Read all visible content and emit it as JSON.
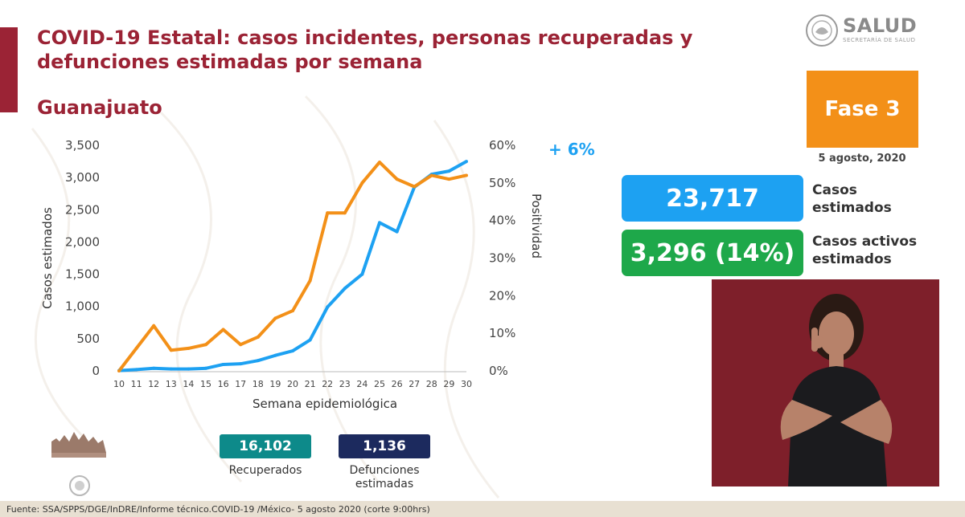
{
  "header": {
    "title": "COVID-19 Estatal: casos incidentes, personas recuperadas y defunciones estimadas por semana",
    "subtitle": "Guanajuato",
    "logo_text": "SALUD",
    "logo_subtext": "SECRETARÍA DE SALUD"
  },
  "phase": {
    "label": "Fase 3"
  },
  "date": "5 agosto, 2020",
  "stats": {
    "estimated": {
      "value": "23,717",
      "label_line1": "Casos",
      "label_line2": "estimados"
    },
    "active": {
      "value": "3,296 (14%)",
      "label_line1": "Casos activos",
      "label_line2": "estimados"
    }
  },
  "delta_label": "+ 6%",
  "totals": {
    "recovered": {
      "value": "16,102",
      "label": "Recuperados"
    },
    "deaths": {
      "value": "1,136",
      "label_line1": "Defunciones",
      "label_line2": "estimadas"
    }
  },
  "footer": "Fuente: SSA/SPPS/DGE/InDRE/Informe técnico.COVID-19 /México- 5 agosto 2020 (corte 9:00hrs)",
  "colors": {
    "brand": "#9b2335",
    "cases_line": "#1da1f2",
    "positivity_line": "#f39018",
    "phase": "#f39018",
    "recovered": "#0d8a8a",
    "deaths": "#1c2a5e"
  },
  "icons": [
    "mexico-seal-icon",
    "sign-language-interpreter-video"
  ],
  "chart_data": {
    "type": "line",
    "x": [
      10,
      11,
      12,
      13,
      14,
      15,
      16,
      17,
      18,
      19,
      20,
      21,
      22,
      23,
      24,
      25,
      26,
      27,
      28,
      29,
      30
    ],
    "xlabel": "Semana epidemiológica",
    "ylabel": "Casos estimados",
    "ylabel_right": "Positividad",
    "ylim": [
      0,
      3500
    ],
    "yticks": [
      "0",
      "500",
      "1,000",
      "1,500",
      "2,000",
      "2,500",
      "3,000",
      "3,500"
    ],
    "ylim_right": [
      0,
      60
    ],
    "yticks_right": [
      "0%",
      "10%",
      "20%",
      "30%",
      "40%",
      "50%",
      "60%"
    ],
    "series": [
      {
        "axis": "left",
        "values": [
          5,
          20,
          40,
          30,
          30,
          40,
          100,
          110,
          160,
          240,
          310,
          480,
          990,
          1280,
          1500,
          2300,
          2160,
          2850,
          3050,
          3100,
          3250
        ]
      },
      {
        "axis": "right",
        "values": [
          0,
          6,
          12,
          5.5,
          6,
          7,
          11,
          7,
          9,
          14,
          16,
          24,
          42,
          42,
          50,
          55.5,
          51,
          49,
          52,
          51,
          52
        ]
      }
    ],
    "grid": false,
    "legend": "none"
  }
}
